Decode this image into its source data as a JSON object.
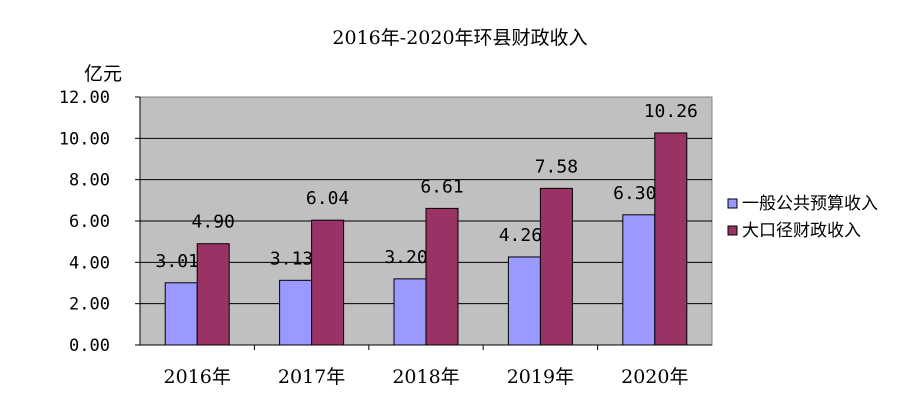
{
  "chart_data": {
    "type": "bar",
    "title": "2016年-2020年环县财政收入",
    "ylabel": "亿元",
    "xlabel": "",
    "categories": [
      "2016年",
      "2017年",
      "2018年",
      "2019年",
      "2020年"
    ],
    "ylim": [
      0,
      12
    ],
    "yticks": [
      "0.00",
      "2.00",
      "4.00",
      "6.00",
      "8.00",
      "10.00",
      "12.00"
    ],
    "grid": true,
    "legend_position": "right",
    "series": [
      {
        "name": "一般公共预算收入",
        "color": "#9999ff",
        "values": [
          3.01,
          3.13,
          3.2,
          4.26,
          6.3
        ],
        "labels": [
          "3.01",
          "3.13",
          "3.20",
          "4.26",
          "6.30"
        ]
      },
      {
        "name": "大口径财政收入",
        "color": "#993366",
        "values": [
          4.9,
          6.04,
          6.61,
          7.58,
          10.26
        ],
        "labels": [
          "4.90",
          "6.04",
          "6.61",
          "7.58",
          "10.26"
        ]
      }
    ],
    "plot_background": "#c0c0c0"
  }
}
